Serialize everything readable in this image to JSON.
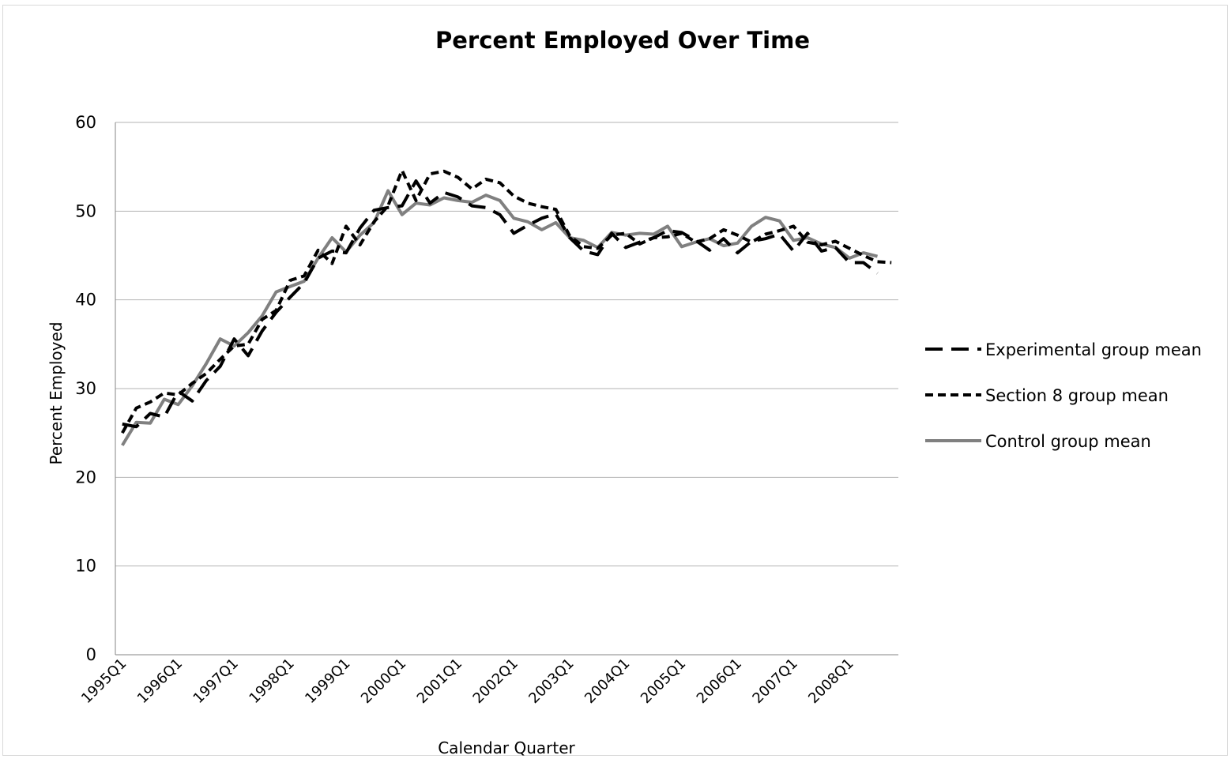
{
  "chart_data": {
    "type": "line",
    "title": "Percent Employed Over Time",
    "xlabel": "Calendar Quarter",
    "ylabel": "Percent Employed",
    "ylim": [
      0,
      60
    ],
    "yticks": [
      0,
      10,
      20,
      30,
      40,
      50,
      60
    ],
    "grid": true,
    "legend_position": "right",
    "x": [
      "1995Q1",
      "1995Q2",
      "1995Q3",
      "1995Q4",
      "1996Q1",
      "1996Q2",
      "1996Q3",
      "1996Q4",
      "1997Q1",
      "1997Q2",
      "1997Q3",
      "1997Q4",
      "1998Q1",
      "1998Q2",
      "1998Q3",
      "1998Q4",
      "1999Q1",
      "1999Q2",
      "1999Q3",
      "1999Q4",
      "2000Q1",
      "2000Q2",
      "2000Q3",
      "2000Q4",
      "2001Q1",
      "2001Q2",
      "2001Q3",
      "2001Q4",
      "2002Q1",
      "2002Q2",
      "2002Q3",
      "2002Q4",
      "2003Q1",
      "2003Q2",
      "2003Q3",
      "2003Q4",
      "2004Q1",
      "2004Q2",
      "2004Q3",
      "2004Q4",
      "2005Q1",
      "2005Q2",
      "2005Q3",
      "2005Q4",
      "2006Q1",
      "2006Q2",
      "2006Q3",
      "2006Q4",
      "2007Q1",
      "2007Q2",
      "2007Q3",
      "2007Q4",
      "2008Q1",
      "2008Q2",
      "2008Q3",
      "2008Q4"
    ],
    "xtick_labels": [
      "1995Q1",
      "1996Q1",
      "1997Q1",
      "1998Q1",
      "1999Q1",
      "2000Q1",
      "2001Q1",
      "2002Q1",
      "2003Q1",
      "2004Q1",
      "2005Q1",
      "2006Q1",
      "2007Q1",
      "2008Q1"
    ],
    "series": [
      {
        "name": "Experimental group mean",
        "style": "long-dash",
        "color": "#000000",
        "values": [
          26.0,
          25.7,
          27.2,
          26.8,
          29.7,
          28.6,
          30.9,
          32.5,
          35.6,
          33.7,
          36.5,
          38.6,
          40.3,
          41.9,
          44.7,
          45.5,
          45.3,
          48.1,
          50.1,
          50.4,
          50.6,
          53.4,
          50.9,
          52.1,
          51.6,
          50.6,
          50.4,
          49.6,
          47.5,
          48.4,
          49.2,
          49.7,
          47.0,
          45.5,
          45.1,
          47.5,
          45.9,
          46.5,
          47.0,
          47.8,
          47.6,
          46.7,
          45.6,
          46.9,
          45.3,
          46.6,
          46.9,
          47.4,
          45.5,
          47.5,
          45.5,
          45.9,
          44.2,
          44.2,
          43.0,
          null
        ]
      },
      {
        "name": "Section 8 group mean",
        "style": "short-dash",
        "color": "#000000",
        "values": [
          25.0,
          27.8,
          28.5,
          29.5,
          29.3,
          30.6,
          31.7,
          33.3,
          34.8,
          35.0,
          37.8,
          38.8,
          42.2,
          42.7,
          45.6,
          44.1,
          48.3,
          46.2,
          48.8,
          50.6,
          54.6,
          51.2,
          54.2,
          54.5,
          53.8,
          52.5,
          53.6,
          53.2,
          51.7,
          50.9,
          50.5,
          50.2,
          47.2,
          46.0,
          45.8,
          47.3,
          47.5,
          46.3,
          47.0,
          47.1,
          47.5,
          46.5,
          46.9,
          47.9,
          47.3,
          46.5,
          47.4,
          47.8,
          48.3,
          46.5,
          46.2,
          46.6,
          45.8,
          45.0,
          44.3,
          44.2
        ]
      },
      {
        "name": "Control group mean",
        "style": "solid",
        "color": "#808080",
        "values": [
          23.6,
          26.2,
          26.1,
          28.8,
          28.2,
          30.3,
          32.8,
          35.6,
          34.8,
          36.3,
          38.2,
          40.9,
          41.5,
          42.1,
          44.7,
          47.0,
          45.4,
          47.3,
          48.7,
          52.3,
          49.6,
          50.9,
          50.7,
          51.5,
          51.2,
          51.0,
          51.8,
          51.2,
          49.2,
          48.8,
          47.9,
          48.7,
          47.0,
          46.7,
          45.9,
          47.6,
          47.3,
          47.5,
          47.4,
          48.3,
          46.0,
          46.5,
          46.9,
          46.1,
          46.4,
          48.3,
          49.3,
          48.9,
          46.7,
          47.0,
          46.3,
          45.9,
          44.7,
          45.3,
          44.9,
          null
        ]
      }
    ]
  }
}
